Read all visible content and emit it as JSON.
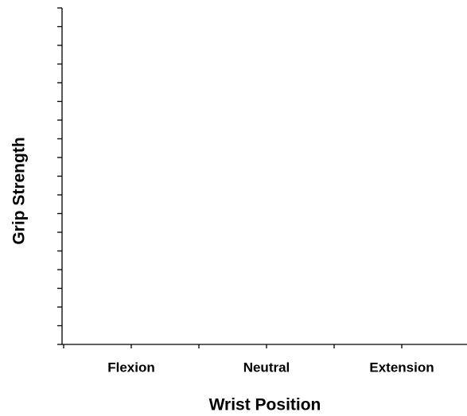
{
  "chart_data": {
    "type": "bar",
    "categories": [
      "Flexion",
      "Neutral",
      "Extension"
    ],
    "xlabel": "Wrist Position",
    "ylabel": "Grip Strength"
  }
}
